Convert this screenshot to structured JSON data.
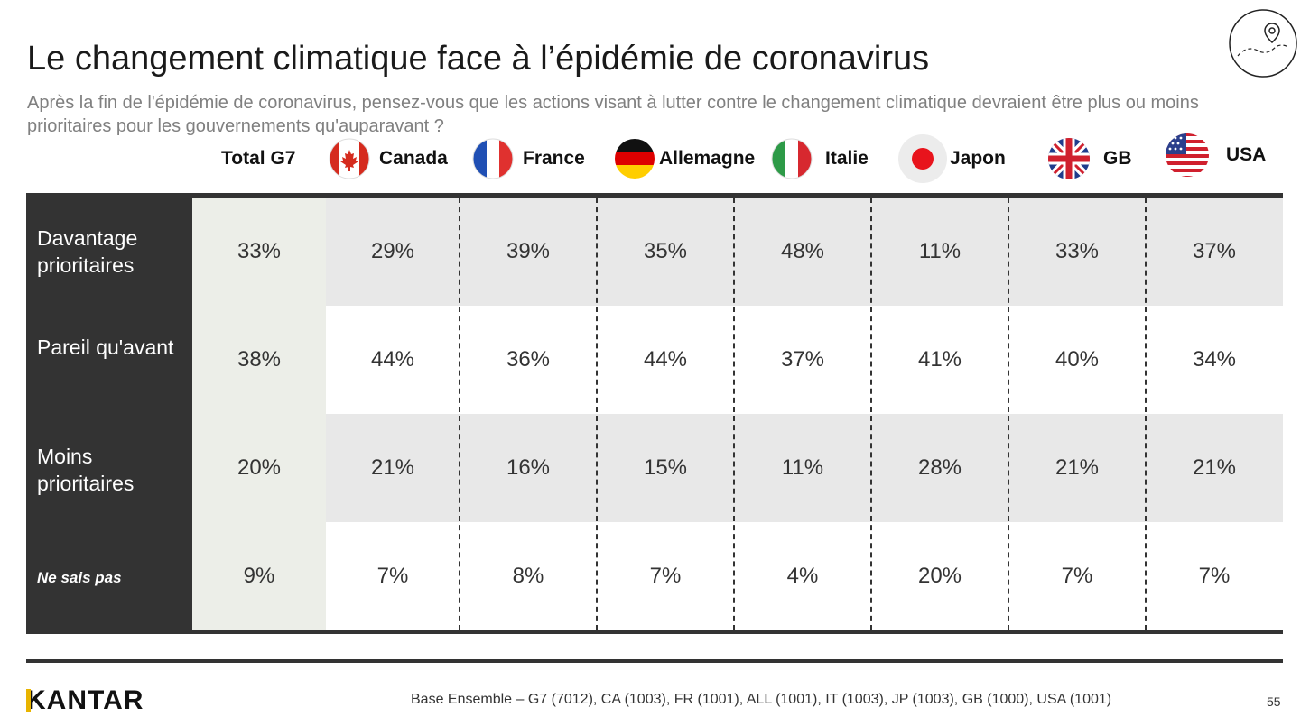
{
  "header": {
    "title": "Le changement climatique face à l’épidémie de coronavirus",
    "subtitle": "Après la fin de l'épidémie de coronavirus, pensez-vous que les actions visant à lutter contre le changement climatique devraient être plus ou moins prioritaires pour les gouvernements qu'auparavant ?",
    "logo_icon": "map-pin-icon"
  },
  "columns": [
    {
      "label": "Total G7",
      "flag": "none"
    },
    {
      "label": "Canada",
      "flag": "canada-flag-icon"
    },
    {
      "label": "France",
      "flag": "france-flag-icon"
    },
    {
      "label": "Allemagne",
      "flag": "germany-flag-icon"
    },
    {
      "label": "Italie",
      "flag": "italy-flag-icon"
    },
    {
      "label": "Japon",
      "flag": "japan-flag-icon"
    },
    {
      "label": "GB",
      "flag": "uk-flag-icon"
    },
    {
      "label": "USA",
      "flag": "usa-flag-icon"
    }
  ],
  "rows": [
    {
      "label": "Davantage prioritaires",
      "values": [
        "33%",
        "29%",
        "39%",
        "35%",
        "48%",
        "11%",
        "33%",
        "37%"
      ]
    },
    {
      "label": "Pareil qu'avant",
      "values": [
        "38%",
        "44%",
        "36%",
        "44%",
        "37%",
        "41%",
        "40%",
        "34%"
      ]
    },
    {
      "label": "Moins prioritaires",
      "values": [
        "20%",
        "21%",
        "16%",
        "15%",
        "11%",
        "28%",
        "21%",
        "21%"
      ]
    },
    {
      "label": "Ne sais pas",
      "values": [
        "9%",
        "7%",
        "8%",
        "7%",
        "4%",
        "20%",
        "7%",
        "7%"
      ]
    }
  ],
  "footer": {
    "brand": "KANTAR",
    "base_note": "Base Ensemble – G7 (7012), CA (1003), FR (1001), ALL (1001), IT (1003), JP (1003), GB (1000), USA (1001)",
    "page_number": "55"
  },
  "colors": {
    "label_column": "#333333",
    "total_column": "#eceee8",
    "band": "#e8e8e8",
    "brand_accent": "#e8b400"
  }
}
